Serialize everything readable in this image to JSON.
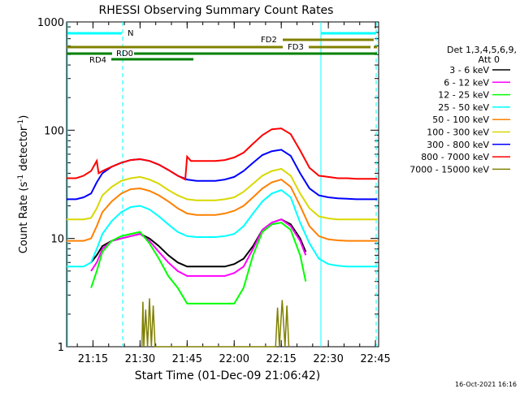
{
  "chart_data": {
    "type": "line",
    "title": "RHESSI Observing Summary Count Rates",
    "xlabel": "Start Time (01-Dec-09 21:06:42)",
    "ylabel_main": "Count Rate (s",
    "ylabel_sup1": "-1",
    "ylabel_mid": " detector",
    "ylabel_sup2": "-1",
    "ylabel_end": ")",
    "y_scale": "log",
    "ylim": [
      1,
      1000
    ],
    "xlim_minutes": [
      21.11,
      22.767
    ],
    "x_ticks": [
      {
        "value": 21.25,
        "label": "21:15"
      },
      {
        "value": 21.5,
        "label": "21:30"
      },
      {
        "value": 21.75,
        "label": "21:45"
      },
      {
        "value": 22.0,
        "label": "22:00"
      },
      {
        "value": 22.25,
        "label": "22:15"
      },
      {
        "value": 22.5,
        "label": "22:30"
      },
      {
        "value": 22.75,
        "label": "22:45"
      }
    ],
    "y_ticks": [
      {
        "value": 1,
        "label": "1"
      },
      {
        "value": 10,
        "label": "10"
      },
      {
        "value": 100,
        "label": "100"
      },
      {
        "value": 1000,
        "label": "1000"
      }
    ],
    "legend": {
      "header1": "Det 1,3,4,5,6,9,",
      "header2": "Att 0",
      "placement": "right"
    },
    "series": [
      {
        "name": "3 - 6 keV",
        "color": "#000000",
        "points": [
          [
            21.24,
            6
          ],
          [
            21.27,
            7
          ],
          [
            21.3,
            8.5
          ],
          [
            21.35,
            9.5
          ],
          [
            21.4,
            10
          ],
          [
            21.45,
            10.5
          ],
          [
            21.5,
            11
          ],
          [
            21.55,
            10
          ],
          [
            21.6,
            8.5
          ],
          [
            21.65,
            7
          ],
          [
            21.7,
            6
          ],
          [
            21.75,
            5.5
          ],
          [
            21.8,
            5.5
          ],
          [
            21.85,
            5.5
          ],
          [
            21.9,
            5.5
          ],
          [
            21.95,
            5.5
          ],
          [
            22.0,
            5.8
          ],
          [
            22.05,
            6.5
          ],
          [
            22.1,
            8.5
          ],
          [
            22.15,
            12
          ],
          [
            22.2,
            14
          ],
          [
            22.25,
            15
          ],
          [
            22.3,
            13.5
          ],
          [
            22.35,
            10
          ],
          [
            22.38,
            7.5
          ]
        ]
      },
      {
        "name": "6 - 12 keV",
        "color": "#ff00ff",
        "points": [
          [
            21.24,
            5
          ],
          [
            21.27,
            6
          ],
          [
            21.3,
            8
          ],
          [
            21.35,
            9.5
          ],
          [
            21.4,
            10
          ],
          [
            21.45,
            10.5
          ],
          [
            21.5,
            11
          ],
          [
            21.55,
            9.5
          ],
          [
            21.6,
            7.5
          ],
          [
            21.65,
            6
          ],
          [
            21.7,
            5
          ],
          [
            21.75,
            4.5
          ],
          [
            21.8,
            4.5
          ],
          [
            21.85,
            4.5
          ],
          [
            21.9,
            4.5
          ],
          [
            21.95,
            4.5
          ],
          [
            22.0,
            4.8
          ],
          [
            22.05,
            5.5
          ],
          [
            22.1,
            8
          ],
          [
            22.15,
            12
          ],
          [
            22.2,
            14
          ],
          [
            22.25,
            15
          ],
          [
            22.3,
            13
          ],
          [
            22.35,
            9.5
          ],
          [
            22.38,
            7
          ]
        ]
      },
      {
        "name": "12 - 25 keV",
        "color": "#00ff00",
        "points": [
          [
            21.24,
            3.5
          ],
          [
            21.27,
            5
          ],
          [
            21.3,
            7.5
          ],
          [
            21.35,
            9.5
          ],
          [
            21.4,
            10.5
          ],
          [
            21.45,
            11
          ],
          [
            21.5,
            11.5
          ],
          [
            21.55,
            9
          ],
          [
            21.6,
            6.5
          ],
          [
            21.65,
            4.5
          ],
          [
            21.7,
            3.5
          ],
          [
            21.75,
            2.5
          ],
          [
            21.8,
            2.5
          ],
          [
            21.85,
            2.5
          ],
          [
            21.9,
            2.5
          ],
          [
            21.95,
            2.5
          ],
          [
            22.0,
            2.5
          ],
          [
            22.05,
            3.5
          ],
          [
            22.1,
            7
          ],
          [
            22.15,
            11.5
          ],
          [
            22.2,
            13.5
          ],
          [
            22.25,
            14
          ],
          [
            22.3,
            12
          ],
          [
            22.35,
            7
          ],
          [
            22.38,
            4
          ]
        ]
      },
      {
        "name": "25 - 50 keV",
        "color": "#00ffff",
        "points": [
          [
            21.11,
            5.5
          ],
          [
            21.16,
            5.5
          ],
          [
            21.2,
            5.5
          ],
          [
            21.24,
            6
          ],
          [
            21.27,
            8
          ],
          [
            21.3,
            11
          ],
          [
            21.35,
            14.5
          ],
          [
            21.4,
            17.5
          ],
          [
            21.45,
            19.5
          ],
          [
            21.5,
            20
          ],
          [
            21.55,
            18.5
          ],
          [
            21.6,
            16
          ],
          [
            21.65,
            13.5
          ],
          [
            21.7,
            11.5
          ],
          [
            21.75,
            10.5
          ],
          [
            21.8,
            10.3
          ],
          [
            21.85,
            10.3
          ],
          [
            21.9,
            10.3
          ],
          [
            21.95,
            10.5
          ],
          [
            22.0,
            11
          ],
          [
            22.05,
            13
          ],
          [
            22.1,
            17
          ],
          [
            22.15,
            22
          ],
          [
            22.2,
            26
          ],
          [
            22.25,
            28
          ],
          [
            22.3,
            24
          ],
          [
            22.35,
            14
          ],
          [
            22.4,
            9
          ],
          [
            22.45,
            6.5
          ],
          [
            22.5,
            5.8
          ],
          [
            22.55,
            5.6
          ],
          [
            22.6,
            5.5
          ],
          [
            22.65,
            5.5
          ],
          [
            22.7,
            5.5
          ],
          [
            22.76,
            5.5
          ]
        ]
      },
      {
        "name": "50 - 100 keV",
        "color": "#ff8000",
        "points": [
          [
            21.11,
            9.5
          ],
          [
            21.16,
            9.5
          ],
          [
            21.2,
            9.5
          ],
          [
            21.24,
            10
          ],
          [
            21.27,
            13
          ],
          [
            21.3,
            17.5
          ],
          [
            21.35,
            22
          ],
          [
            21.4,
            26
          ],
          [
            21.45,
            28.5
          ],
          [
            21.5,
            29
          ],
          [
            21.55,
            27.5
          ],
          [
            21.6,
            25
          ],
          [
            21.65,
            22
          ],
          [
            21.7,
            19
          ],
          [
            21.75,
            17
          ],
          [
            21.8,
            16.5
          ],
          [
            21.85,
            16.5
          ],
          [
            21.9,
            16.5
          ],
          [
            21.95,
            17
          ],
          [
            22.0,
            18
          ],
          [
            22.05,
            20
          ],
          [
            22.1,
            24
          ],
          [
            22.15,
            29
          ],
          [
            22.2,
            33
          ],
          [
            22.25,
            35
          ],
          [
            22.3,
            30
          ],
          [
            22.35,
            20
          ],
          [
            22.4,
            13
          ],
          [
            22.45,
            10.5
          ],
          [
            22.5,
            9.8
          ],
          [
            22.55,
            9.6
          ],
          [
            22.6,
            9.5
          ],
          [
            22.65,
            9.5
          ],
          [
            22.7,
            9.5
          ],
          [
            22.76,
            9.5
          ]
        ]
      },
      {
        "name": "100 - 300 keV",
        "color": "#d8d800",
        "points": [
          [
            21.11,
            15
          ],
          [
            21.16,
            15
          ],
          [
            21.2,
            15
          ],
          [
            21.24,
            15.5
          ],
          [
            21.27,
            19
          ],
          [
            21.3,
            25
          ],
          [
            21.35,
            30
          ],
          [
            21.4,
            34
          ],
          [
            21.45,
            36
          ],
          [
            21.5,
            37
          ],
          [
            21.55,
            35
          ],
          [
            21.6,
            32
          ],
          [
            21.65,
            28
          ],
          [
            21.7,
            25
          ],
          [
            21.75,
            23
          ],
          [
            21.8,
            22.5
          ],
          [
            21.85,
            22.5
          ],
          [
            21.9,
            22.5
          ],
          [
            21.95,
            23
          ],
          [
            22.0,
            24
          ],
          [
            22.05,
            27
          ],
          [
            22.1,
            32
          ],
          [
            22.15,
            38
          ],
          [
            22.2,
            42
          ],
          [
            22.25,
            44
          ],
          [
            22.3,
            38
          ],
          [
            22.35,
            26
          ],
          [
            22.4,
            19
          ],
          [
            22.45,
            16
          ],
          [
            22.5,
            15.3
          ],
          [
            22.55,
            15
          ],
          [
            22.6,
            15
          ],
          [
            22.65,
            15
          ],
          [
            22.7,
            15
          ],
          [
            22.76,
            15
          ]
        ]
      },
      {
        "name": "300 - 800 keV",
        "color": "#0000ff",
        "points": [
          [
            21.11,
            23
          ],
          [
            21.16,
            23
          ],
          [
            21.2,
            24
          ],
          [
            21.24,
            26
          ],
          [
            21.27,
            33
          ],
          [
            21.3,
            40
          ],
          [
            21.35,
            46
          ],
          [
            21.4,
            50
          ],
          [
            21.45,
            53
          ],
          [
            21.5,
            54
          ],
          [
            21.55,
            52
          ],
          [
            21.6,
            48
          ],
          [
            21.65,
            43
          ],
          [
            21.7,
            38
          ],
          [
            21.75,
            35
          ],
          [
            21.8,
            34
          ],
          [
            21.85,
            34
          ],
          [
            21.9,
            34
          ],
          [
            21.95,
            35
          ],
          [
            22.0,
            37
          ],
          [
            22.05,
            42
          ],
          [
            22.1,
            50
          ],
          [
            22.15,
            59
          ],
          [
            22.2,
            64
          ],
          [
            22.25,
            66
          ],
          [
            22.3,
            58
          ],
          [
            22.35,
            40
          ],
          [
            22.4,
            29
          ],
          [
            22.45,
            25
          ],
          [
            22.5,
            24
          ],
          [
            22.55,
            23.5
          ],
          [
            22.6,
            23.3
          ],
          [
            22.65,
            23
          ],
          [
            22.7,
            23
          ],
          [
            22.76,
            23
          ]
        ]
      },
      {
        "name": "800 - 7000 keV",
        "color": "#ff0000",
        "points": [
          [
            21.11,
            36
          ],
          [
            21.16,
            36
          ],
          [
            21.2,
            38
          ],
          [
            21.24,
            42
          ],
          [
            21.27,
            52
          ],
          [
            21.28,
            40
          ],
          [
            21.3,
            42
          ],
          [
            21.35,
            46
          ],
          [
            21.4,
            50
          ],
          [
            21.45,
            53
          ],
          [
            21.5,
            54
          ],
          [
            21.55,
            52
          ],
          [
            21.6,
            48
          ],
          [
            21.65,
            43
          ],
          [
            21.7,
            38
          ],
          [
            21.74,
            35
          ],
          [
            21.75,
            57
          ],
          [
            21.77,
            52
          ],
          [
            21.8,
            52
          ],
          [
            21.85,
            52
          ],
          [
            21.9,
            52
          ],
          [
            21.95,
            53
          ],
          [
            22.0,
            56
          ],
          [
            22.05,
            62
          ],
          [
            22.1,
            75
          ],
          [
            22.15,
            90
          ],
          [
            22.2,
            102
          ],
          [
            22.25,
            104
          ],
          [
            22.3,
            92
          ],
          [
            22.35,
            65
          ],
          [
            22.4,
            45
          ],
          [
            22.45,
            38
          ],
          [
            22.5,
            37
          ],
          [
            22.55,
            36
          ],
          [
            22.6,
            36
          ],
          [
            22.65,
            35.5
          ],
          [
            22.7,
            35.5
          ],
          [
            22.76,
            35.5
          ]
        ]
      },
      {
        "name": "7000 - 15000 keV",
        "color": "#808000",
        "points": [
          [
            21.51,
            1
          ],
          [
            21.515,
            2.6
          ],
          [
            21.52,
            1
          ],
          [
            21.53,
            2.2
          ],
          [
            21.54,
            1
          ],
          [
            21.55,
            2.8
          ],
          [
            21.56,
            1
          ],
          [
            21.57,
            2.4
          ],
          [
            21.58,
            1
          ],
          [
            22.22,
            1
          ],
          [
            22.23,
            2.3
          ],
          [
            22.24,
            1
          ],
          [
            22.255,
            2.7
          ],
          [
            22.27,
            1
          ],
          [
            22.28,
            2.4
          ],
          [
            22.29,
            1
          ]
        ]
      }
    ],
    "annotations": {
      "top_band_label": "N",
      "bars": [
        {
          "label": "FD2",
          "color": "#808000"
        },
        {
          "label": "FD3",
          "color": "#808000"
        },
        {
          "label": "RD0",
          "color": "#008000"
        },
        {
          "label": "RD4",
          "color": "#008000"
        }
      ]
    }
  },
  "footer": {
    "timestamp": "16-Oct-2021 16:16"
  }
}
